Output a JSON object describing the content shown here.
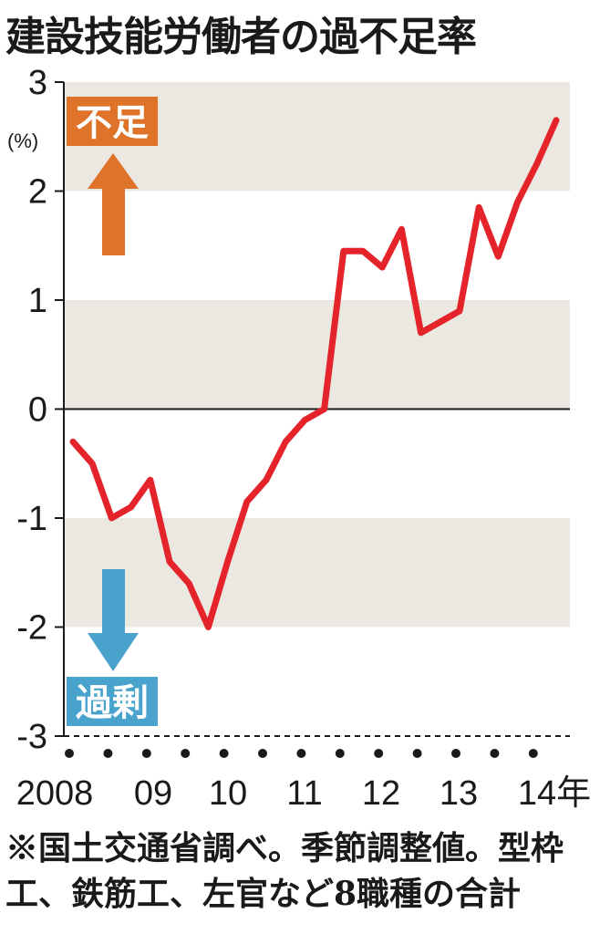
{
  "title": "建設技能労働者の過不足率",
  "note": "※国土交通省調べ。季節調整値。型枠工、鉄筋工、左官など8職種の合計",
  "colors": {
    "line": "#e5232a",
    "band": "#ebe8e2",
    "shortage": "#e0732a",
    "surplus": "#4aa3cc"
  },
  "chart_data": {
    "type": "line",
    "title": "建設技能労働者の過不足率",
    "ylabel": "(%)",
    "ylim": [
      -3,
      3
    ],
    "y_ticks": [
      "3",
      "2",
      "1",
      "0",
      "-1",
      "-2",
      "-3"
    ],
    "x_tick_labels": [
      "2008",
      "09",
      "10",
      "11",
      "12",
      "13",
      "14年"
    ],
    "annotations": {
      "shortage": "不足",
      "surplus": "過剰"
    },
    "series": [
      {
        "values": [
          -0.3,
          -0.5,
          -1.0,
          -0.9,
          -0.65,
          -1.4,
          -1.6,
          -2.0,
          -1.4,
          -0.85,
          -0.65,
          -0.3,
          -0.1,
          0.0,
          1.45,
          1.45,
          1.3,
          1.65,
          0.7,
          0.8,
          0.9,
          1.85,
          1.4,
          1.9,
          2.25,
          2.65
        ]
      }
    ]
  }
}
